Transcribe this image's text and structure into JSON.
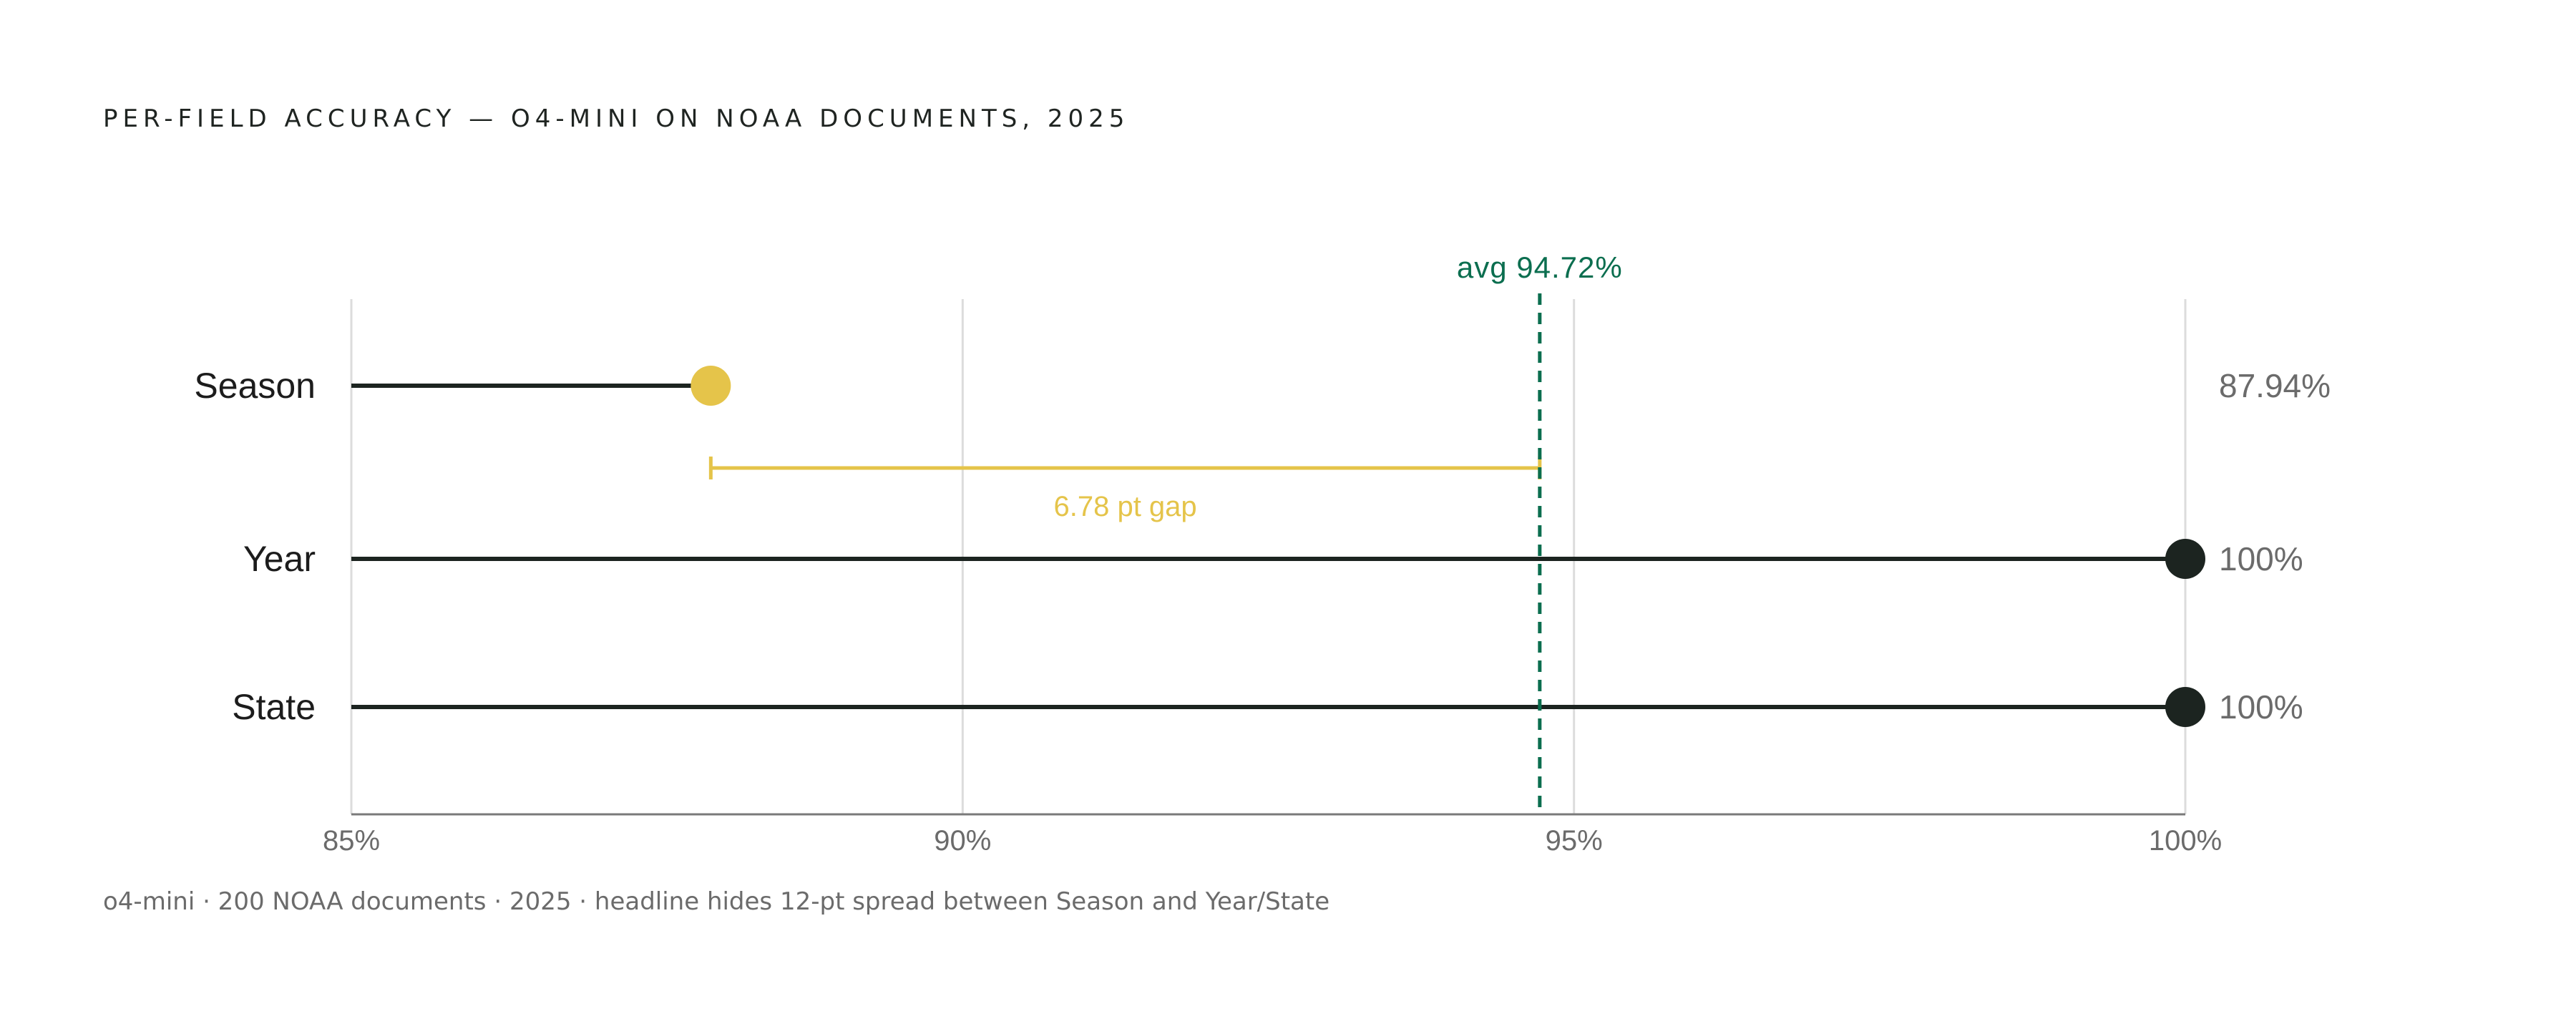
{
  "chart_data": {
    "type": "lollipop",
    "title": "PER-FIELD ACCURACY — O4-MINI ON NOAA DOCUMENTS, 2025",
    "categories": [
      "Season",
      "Year",
      "State"
    ],
    "values": [
      87.94,
      100,
      100
    ],
    "value_labels": [
      "87.94%",
      "100%",
      "100%"
    ],
    "xlim": [
      85,
      100
    ],
    "x_ticks": [
      85,
      90,
      95,
      100
    ],
    "x_tick_labels": [
      "85%",
      "90%",
      "95%",
      "100%"
    ],
    "grid": true,
    "average": {
      "value": 94.72,
      "label": "avg 94.72%"
    },
    "gap_annotation": {
      "from": 87.94,
      "to": 94.72,
      "label": "6.78 pt gap"
    },
    "colors": {
      "highlight": "#e5c44a",
      "dot": "#1c2420",
      "line": "#1c2420",
      "average": "#0b6e4f",
      "grid": "#dcdcdc",
      "axis": "#7a7a7a",
      "value_label": "#6b6b6b"
    }
  },
  "footnote": "o4-mini · 200 NOAA documents · 2025  ·  headline hides 12-pt spread between Season and Year/State"
}
